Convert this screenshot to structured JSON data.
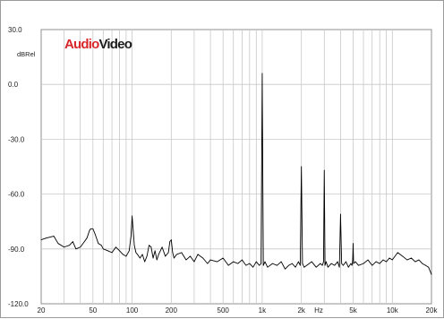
{
  "logo": {
    "part1": "Audio",
    "part2": "Video",
    "colors": {
      "part1": "#d9262a",
      "part2": "#1a1a1a"
    }
  },
  "chart_data": {
    "type": "line",
    "title": "",
    "ylabel": "dBRel",
    "xlabel": "Hz",
    "x_scale": "log",
    "xlim": [
      20,
      20000
    ],
    "ylim": [
      -120,
      30
    ],
    "grid": true,
    "y_ticks": [
      30,
      0,
      -30,
      -60,
      -90,
      -120
    ],
    "y_tick_labels": [
      "30.0",
      "0.0",
      "-30.0",
      "-60.0",
      "-90.0",
      "-120.0"
    ],
    "x_ticks": [
      20,
      50,
      100,
      200,
      500,
      1000,
      2000,
      5000,
      10000,
      20000
    ],
    "x_tick_labels": [
      "20",
      "50",
      "100",
      "200",
      "500",
      "1k",
      "2k",
      "5k",
      "10k",
      "20k"
    ],
    "line_color": "#000000",
    "series": [
      {
        "values_note": "",
        "x": [
          20,
          22,
          25,
          27,
          30,
          33,
          35,
          37,
          40,
          43,
          45,
          47,
          48,
          50,
          52,
          55,
          58,
          60,
          65,
          70,
          75,
          80,
          85,
          90,
          95,
          98,
          100,
          102,
          104,
          107,
          110,
          115,
          120,
          125,
          130,
          135,
          140,
          145,
          150,
          155,
          160,
          170,
          180,
          190,
          195,
          200,
          205,
          210,
          220,
          240,
          260,
          280,
          300,
          320,
          350,
          380,
          400,
          450,
          500,
          550,
          600,
          650,
          700,
          750,
          800,
          850,
          900,
          950,
          980,
          1000,
          1020,
          1050,
          1100,
          1200,
          1300,
          1400,
          1500,
          1600,
          1700,
          1800,
          1900,
          1960,
          2000,
          2040,
          2100,
          2200,
          2400,
          2600,
          2800,
          2900,
          2960,
          3000,
          3040,
          3100,
          3200,
          3400,
          3600,
          3800,
          3920,
          4000,
          4080,
          4200,
          4400,
          4600,
          4800,
          4900,
          4960,
          5000,
          5040,
          5200,
          5500,
          6000,
          6500,
          7000,
          7500,
          8000,
          8500,
          9000,
          9500,
          10000,
          11000,
          12000,
          13000,
          14000,
          15000,
          16000,
          17000,
          18000,
          19000,
          20000
        ],
        "y": [
          -85,
          -84,
          -83,
          -87,
          -89,
          -88,
          -86,
          -90,
          -89,
          -86,
          -84,
          -80,
          -79,
          -79,
          -82,
          -87,
          -88,
          -90,
          -91,
          -92,
          -89,
          -91,
          -93,
          -94,
          -91,
          -83,
          -72,
          -80,
          -88,
          -92,
          -93,
          -95,
          -93,
          -97,
          -94,
          -88,
          -89,
          -95,
          -91,
          -96,
          -93,
          -89,
          -94,
          -92,
          -86,
          -85,
          -92,
          -95,
          -93,
          -92,
          -96,
          -94,
          -97,
          -93,
          -95,
          -98,
          -96,
          -97,
          -95,
          -99,
          -97,
          -98,
          -96,
          -99,
          -98,
          -100,
          -97,
          -99,
          -98,
          6,
          -99,
          -97,
          -100,
          -98,
          -99,
          -97,
          -101,
          -99,
          -98,
          -100,
          -97,
          -99,
          -45,
          -98,
          -100,
          -99,
          -97,
          -100,
          -98,
          -99,
          -97,
          -47,
          -99,
          -97,
          -100,
          -98,
          -99,
          -97,
          -100,
          -71,
          -98,
          -99,
          -97,
          -100,
          -98,
          -99,
          -96,
          -87,
          -98,
          -97,
          -99,
          -98,
          -96,
          -99,
          -97,
          -98,
          -96,
          -97,
          -95,
          -96,
          -92,
          -94,
          -96,
          -95,
          -97,
          -96,
          -98,
          -99,
          -100,
          -104
        ]
      }
    ]
  }
}
